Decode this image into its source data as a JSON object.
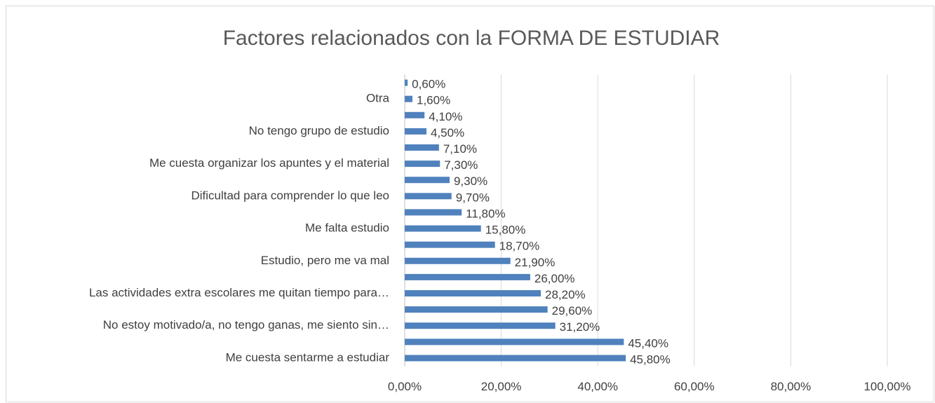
{
  "chart_data": {
    "type": "bar",
    "orientation": "horizontal",
    "title": "Factores relacionados con la FORMA DE ESTUDIAR",
    "categories": [
      "Me cuesta sentarme a estudiar",
      null,
      "No estoy motivado/a, no tengo ganas, me siento sin…",
      null,
      "Las actividades extra escolares me quitan tiempo para…",
      null,
      "Estudio, pero me va mal",
      null,
      "Me falta estudio",
      null,
      "Dificultad para comprender lo que leo",
      null,
      "Me cuesta organizar los apuntes y el material",
      null,
      "No tengo grupo de estudio",
      null,
      "Otra",
      null
    ],
    "values": [
      45.8,
      45.4,
      31.2,
      29.6,
      28.2,
      26.0,
      21.9,
      18.7,
      15.8,
      11.8,
      9.7,
      9.3,
      7.3,
      7.1,
      4.5,
      4.1,
      1.6,
      0.6
    ],
    "value_labels": [
      "45,80%",
      "45,40%",
      "31,20%",
      "29,60%",
      "28,20%",
      "26,00%",
      "21,90%",
      "18,70%",
      "15,80%",
      "11,80%",
      "9,70%",
      "9,30%",
      "7,30%",
      "7,10%",
      "4,50%",
      "4,10%",
      "1,60%",
      "0,60%"
    ],
    "color": "#4f81bd",
    "xlim": [
      0,
      100
    ],
    "xticks": [
      {
        "value": 0,
        "label": "0,00%"
      },
      {
        "value": 20,
        "label": "20,00%"
      },
      {
        "value": 40,
        "label": "40,00%"
      },
      {
        "value": 60,
        "label": "60,00%"
      },
      {
        "value": 80,
        "label": "80,00%"
      },
      {
        "value": 100,
        "label": "100,00%"
      }
    ],
    "grid": true
  }
}
